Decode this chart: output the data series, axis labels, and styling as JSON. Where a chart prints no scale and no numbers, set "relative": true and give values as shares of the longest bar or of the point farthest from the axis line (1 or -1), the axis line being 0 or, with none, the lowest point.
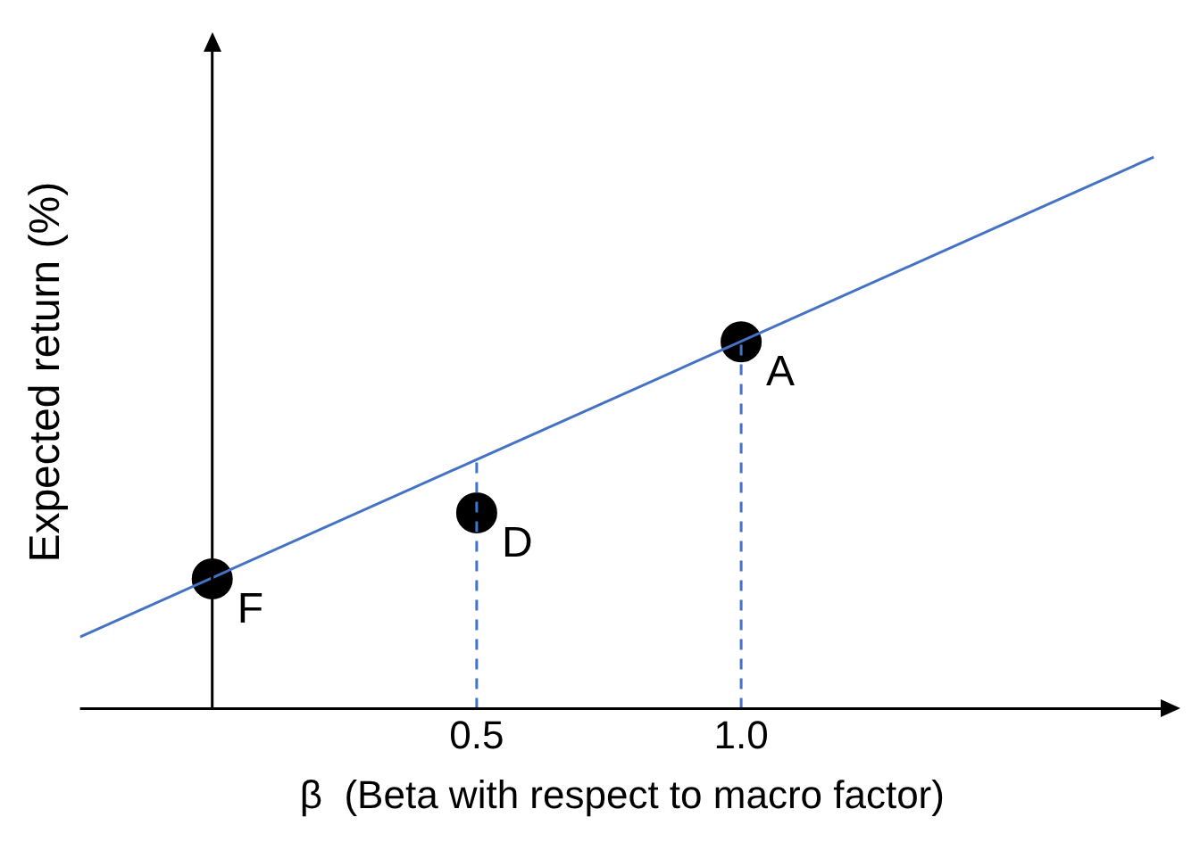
{
  "chart_data": {
    "type": "scatter",
    "relative": true,
    "xlabel": "β  (Beta with respect to macro factor)",
    "ylabel": "Expected return (%)",
    "xlim": [
      -0.25,
      1.8
    ],
    "xticks": [
      0.5,
      {
        "value": 1.0,
        "label": "1.0"
      }
    ],
    "tick_labels": "x",
    "grid": false,
    "legend": false,
    "series": [
      {
        "type": "line",
        "color": "#4472c4",
        "x": [
          -0.25,
          1.78
        ],
        "values": [
          0.13,
          1.0
        ],
        "marker": "none",
        "line_style": "solid"
      },
      {
        "type": "line",
        "color": "#4472c4",
        "line_style": "dashed",
        "x": [
          0.5,
          0.5
        ],
        "values": [
          0,
          0.45
        ],
        "marker": "none"
      },
      {
        "type": "line",
        "color": "#4472c4",
        "line_style": "dashed",
        "x": [
          1.0,
          1.0
        ],
        "values": [
          0,
          0.665
        ],
        "marker": "none"
      },
      {
        "type": "scatter",
        "color": "#000000",
        "x": [
          0,
          0.5,
          1.0
        ],
        "values": [
          0.235,
          0.355,
          0.665
        ],
        "marker": "circle"
      }
    ],
    "annotations": [
      {
        "text": "F",
        "x": 0,
        "y": 0.235
      },
      {
        "text": "D",
        "x": 0.5,
        "y": 0.355
      },
      {
        "text": "A",
        "x": 1.0,
        "y": 0.665
      }
    ]
  }
}
